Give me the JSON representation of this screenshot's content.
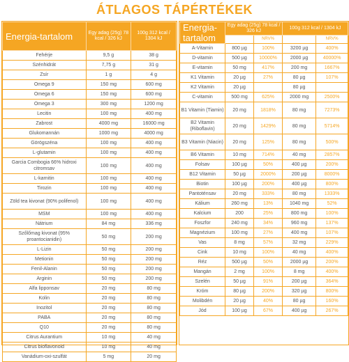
{
  "title": "ÁTLAGOS TÁPÉRTÉKEK",
  "left": {
    "header": {
      "name": "Energia-tartalom",
      "col1": "Egy adag (25g) 78 kcal / 326 kJ",
      "col2": "100g 312 kcal / 1304 kJ"
    },
    "rows": [
      [
        "Fehérje",
        "9,5 g",
        "38 g"
      ],
      [
        "Szénhidrát",
        "7,75 g",
        "31 g"
      ],
      [
        "Zsír",
        "1 g",
        "4 g"
      ],
      [
        "Omega 9",
        "150 mg",
        "600 mg"
      ],
      [
        "Omega 6",
        "150 mg",
        "600 mg"
      ],
      [
        "Omega 3",
        "300 mg",
        "1200 mg"
      ],
      [
        "Lecitin",
        "100 mg",
        "400 mg"
      ],
      [
        "Zabrost",
        "4000 mg",
        "16000 mg"
      ],
      [
        "Glukomannán",
        "1000 mg",
        "4000 mg"
      ],
      [
        "Görögszéna",
        "100 mg",
        "400 mg"
      ],
      [
        "L-glutamin",
        "100 mg",
        "400 mg"
      ],
      [
        "Garcia Combogia 66% hidroxi citromsav",
        "100 mg",
        "400 mg"
      ],
      [
        "L-karnitin",
        "100 mg",
        "400 mg"
      ],
      [
        "Tirozin",
        "100 mg",
        "400 mg"
      ],
      [
        "Zöld tea kivonat (90% polifenol)",
        "100 mg",
        "400 mg"
      ],
      [
        "MSM",
        "100 mg",
        "400 mg"
      ],
      [
        "Nátrium",
        "84 mg",
        "336 mg"
      ],
      [
        "Szőlőmag kivonat (95% proantocianidin)",
        "50 mg",
        "200 mg"
      ],
      [
        "L-Lizin",
        "50 mg",
        "200 mg"
      ],
      [
        "Metionin",
        "50 mg",
        "200 mg"
      ],
      [
        "Fenil-Alanin",
        "50 mg",
        "200 mg"
      ],
      [
        "Arginin",
        "50 mg",
        "200 mg"
      ],
      [
        "Alfa lipponsav",
        "20 mg",
        "80 mg"
      ],
      [
        "Kolin",
        "20 mg",
        "80 mg"
      ],
      [
        "Inozitol",
        "20 mg",
        "80 mg"
      ],
      [
        "PABA",
        "20 mg",
        "80 mg"
      ],
      [
        "Q10",
        "20 mg",
        "80 mg"
      ],
      [
        "Citrus Aurantium",
        "10 mg",
        "40 mg"
      ],
      [
        "Citrus bioflavonoid",
        "10 mg",
        "40 mg"
      ],
      [
        "Vanádium-oxi-szulfát",
        "5 mg",
        "20 mg"
      ]
    ]
  },
  "right": {
    "header": {
      "name": "Energia-tartalom",
      "col1": "Egy adag (25g) 78 kcal / 326 kJ",
      "col2": "100g 312 kcal / 1304 kJ",
      "nrv": "NRV%"
    },
    "rows": [
      [
        "A-Vitamin",
        "800 µg",
        "100%",
        "3200 µg",
        "400%"
      ],
      [
        "D-vitamin",
        "500 µg",
        "10000%",
        "2000 µg",
        "40000%"
      ],
      [
        "E-vitamin",
        "50 mg",
        "417%",
        "200 mg",
        "1667%"
      ],
      [
        "K1 Vitamin",
        "20 µg",
        "27%",
        "80 µg",
        "107%"
      ],
      [
        "K2 Vitamin",
        "20 µg",
        "",
        "80 µg",
        ""
      ],
      [
        "C-vitamin",
        "500 mg",
        "625%",
        "2000 mg",
        "2500%"
      ],
      [
        "B1 Vitamin (Tiamin)",
        "20 mg",
        "1818%",
        "80 mg",
        "7273%"
      ],
      [
        "B2 Vitamin (Riboflavin)",
        "20 mg",
        "1429%",
        "80 mg",
        "5714%"
      ],
      [
        "B3 Vitamin (Niacin)",
        "20 mg",
        "125%",
        "80 mg",
        "500%"
      ],
      [
        "B6 Vitamin",
        "10 mg",
        "714%",
        "40 mg",
        "2857%"
      ],
      [
        "Folsav",
        "100 µg",
        "50%",
        "400 µg",
        "200%"
      ],
      [
        "B12 Vitamin",
        "50 µg",
        "2000%",
        "200 µg",
        "8000%"
      ],
      [
        "Biotin",
        "100 µg",
        "200%",
        "400 µg",
        "800%"
      ],
      [
        "Pantoténsav",
        "20 mg",
        "333%",
        "80 mg",
        "1333%"
      ],
      [
        "Kálium",
        "260 mg",
        "13%",
        "1040 mg",
        "52%"
      ],
      [
        "Kalcium",
        "200",
        "25%",
        "800 mg",
        "100%"
      ],
      [
        "Foszfor",
        "240 mg",
        "34%",
        "960 mg",
        "137%"
      ],
      [
        "Magnézium",
        "100 mg",
        "27%",
        "400 mg",
        "107%"
      ],
      [
        "Vas",
        "8 mg",
        "57%",
        "32 mg",
        "229%"
      ],
      [
        "Cink",
        "10 mg",
        "100%",
        "40 mg",
        "400%"
      ],
      [
        "Réz",
        "500 µg",
        "50%",
        "2000 µg",
        "200%"
      ],
      [
        "Mangán",
        "2 mg",
        "100%",
        "8 mg",
        "400%"
      ],
      [
        "Szelén",
        "50 µg",
        "91%",
        "200 µg",
        "364%"
      ],
      [
        "Króm",
        "80 µg",
        "200%",
        "320 µg",
        "800%"
      ],
      [
        "Molibdén",
        "20 µg",
        "40%",
        "80 µg",
        "160%"
      ],
      [
        "Jód",
        "100 µg",
        "67%",
        "400 µg",
        "267%"
      ]
    ]
  }
}
